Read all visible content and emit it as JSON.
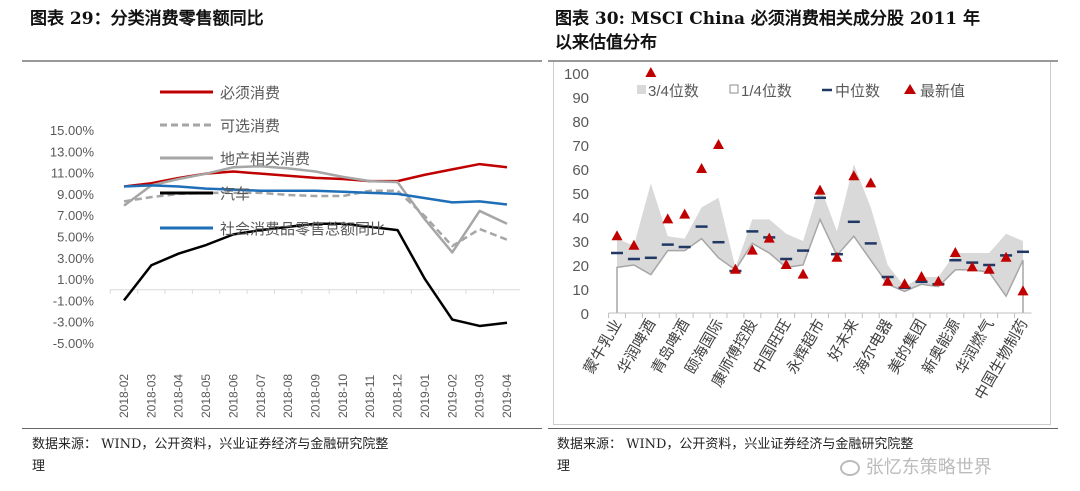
{
  "left": {
    "title": "图表 29：分类消费零售额同比",
    "footer_line1": "数据来源： WIND，公开资料，兴业证券经济与金融研究院整",
    "footer_line2": "理"
  },
  "right": {
    "title_line1": "图表 30:   MSCI China 必须消费相关成分股 2011 年",
    "title_line2": "以来估值分布",
    "footer_line1": "数据来源： WIND，公开资料，兴业证券经济与金融研究院整",
    "footer_line2": "理",
    "watermark": "张忆东策略世界"
  },
  "chart_data": [
    {
      "type": "line",
      "title": "分类消费零售额同比",
      "categories": [
        "2018-02",
        "2018-03",
        "2018-04",
        "2018-05",
        "2018-06",
        "2018-07",
        "2018-08",
        "2018-09",
        "2018-10",
        "2018-11",
        "2018-12",
        "2019-01",
        "2019-02",
        "2019-03",
        "2019-04"
      ],
      "ylim": [
        -5,
        15
      ],
      "yticks": [
        "15.00%",
        "13.00%",
        "11.00%",
        "9.00%",
        "7.00%",
        "5.00%",
        "3.00%",
        "1.00%",
        "-1.00%",
        "-3.00%",
        "-5.00%"
      ],
      "legend_position": "top-center",
      "series": [
        {
          "name": "必须消费",
          "color": "#c00000",
          "dash": false,
          "values": [
            9.7,
            10.0,
            10.5,
            10.9,
            11.1,
            10.9,
            10.7,
            10.5,
            10.4,
            10.2,
            10.2,
            10.8,
            11.3,
            11.8,
            11.5
          ]
        },
        {
          "name": "可选消费",
          "color": "#a6a6a6",
          "dash": true,
          "values": [
            8.3,
            8.7,
            9.0,
            9.1,
            9.1,
            9.1,
            8.9,
            8.8,
            8.8,
            9.3,
            9.3,
            6.9,
            4.1,
            5.7,
            4.7
          ]
        },
        {
          "name": "地产相关消费",
          "color": "#a6a6a6",
          "dash": false,
          "values": [
            7.9,
            9.8,
            10.4,
            10.9,
            11.5,
            11.6,
            11.4,
            11.1,
            10.6,
            10.2,
            10.1,
            6.6,
            3.5,
            7.4,
            6.2
          ]
        },
        {
          "name": "汽车",
          "color": "#000000",
          "dash": false,
          "values": [
            -1.0,
            2.3,
            3.4,
            4.2,
            5.2,
            5.6,
            5.9,
            6.2,
            6.2,
            5.9,
            5.6,
            1.0,
            -2.8,
            -3.4,
            -3.1
          ]
        },
        {
          "name": "社会消费品零售总额同比",
          "color": "#1f6fb8",
          "dash": false,
          "values": [
            9.7,
            9.8,
            9.7,
            9.5,
            9.4,
            9.3,
            9.3,
            9.3,
            9.2,
            9.1,
            9.0,
            8.6,
            8.2,
            8.3,
            8.0
          ]
        }
      ]
    },
    {
      "type": "area",
      "title": "MSCI China 必须消费相关成分股 2011 年以来估值分布",
      "categories": [
        "蒙牛乳业",
        "",
        "华润啤酒",
        "",
        "青岛啤酒",
        "",
        "颐海国际",
        "",
        "康师傅控股",
        "",
        "中国旺旺",
        "",
        "永辉超市",
        "",
        "好未来",
        "",
        "海尔电器",
        "",
        "美的集团",
        "",
        "新奥能源",
        "",
        "华润燃气",
        "",
        "中国生物制药"
      ],
      "ylim": [
        0,
        100
      ],
      "yticks": [
        0,
        10,
        20,
        30,
        40,
        50,
        60,
        70,
        80,
        90,
        100
      ],
      "legend_position": "top",
      "legend": [
        "3/4位数",
        "1/4位数",
        "中位数",
        "最新值"
      ],
      "colors": {
        "band": "#d9d9d9",
        "lower_line": "#a6a6a6",
        "median": "#1f3864",
        "latest": "#c00000"
      },
      "q3": [
        31,
        28,
        54,
        32,
        31,
        44,
        48,
        19,
        39,
        39,
        33,
        30,
        53,
        34,
        62,
        44,
        20,
        11,
        15,
        15,
        25,
        25,
        25,
        33,
        30
      ],
      "q1": [
        19,
        20,
        16,
        26,
        26,
        31,
        23,
        18,
        29,
        25,
        19,
        20,
        39,
        24,
        32,
        22,
        12,
        9,
        12,
        11,
        18,
        18,
        17,
        7,
        22
      ],
      "median": [
        25,
        22.5,
        23,
        28.5,
        27.5,
        36,
        29.5,
        17.5,
        34,
        31.5,
        22.5,
        26,
        48,
        24.5,
        38,
        29,
        15,
        10.5,
        13,
        12,
        22,
        21,
        20,
        24,
        25.5
      ],
      "latest": [
        32,
        28,
        100,
        39,
        41,
        60,
        70,
        18,
        26,
        31,
        20,
        16,
        51,
        23,
        57,
        54,
        13,
        12,
        15,
        13,
        25,
        19,
        18,
        23,
        9
      ]
    }
  ]
}
